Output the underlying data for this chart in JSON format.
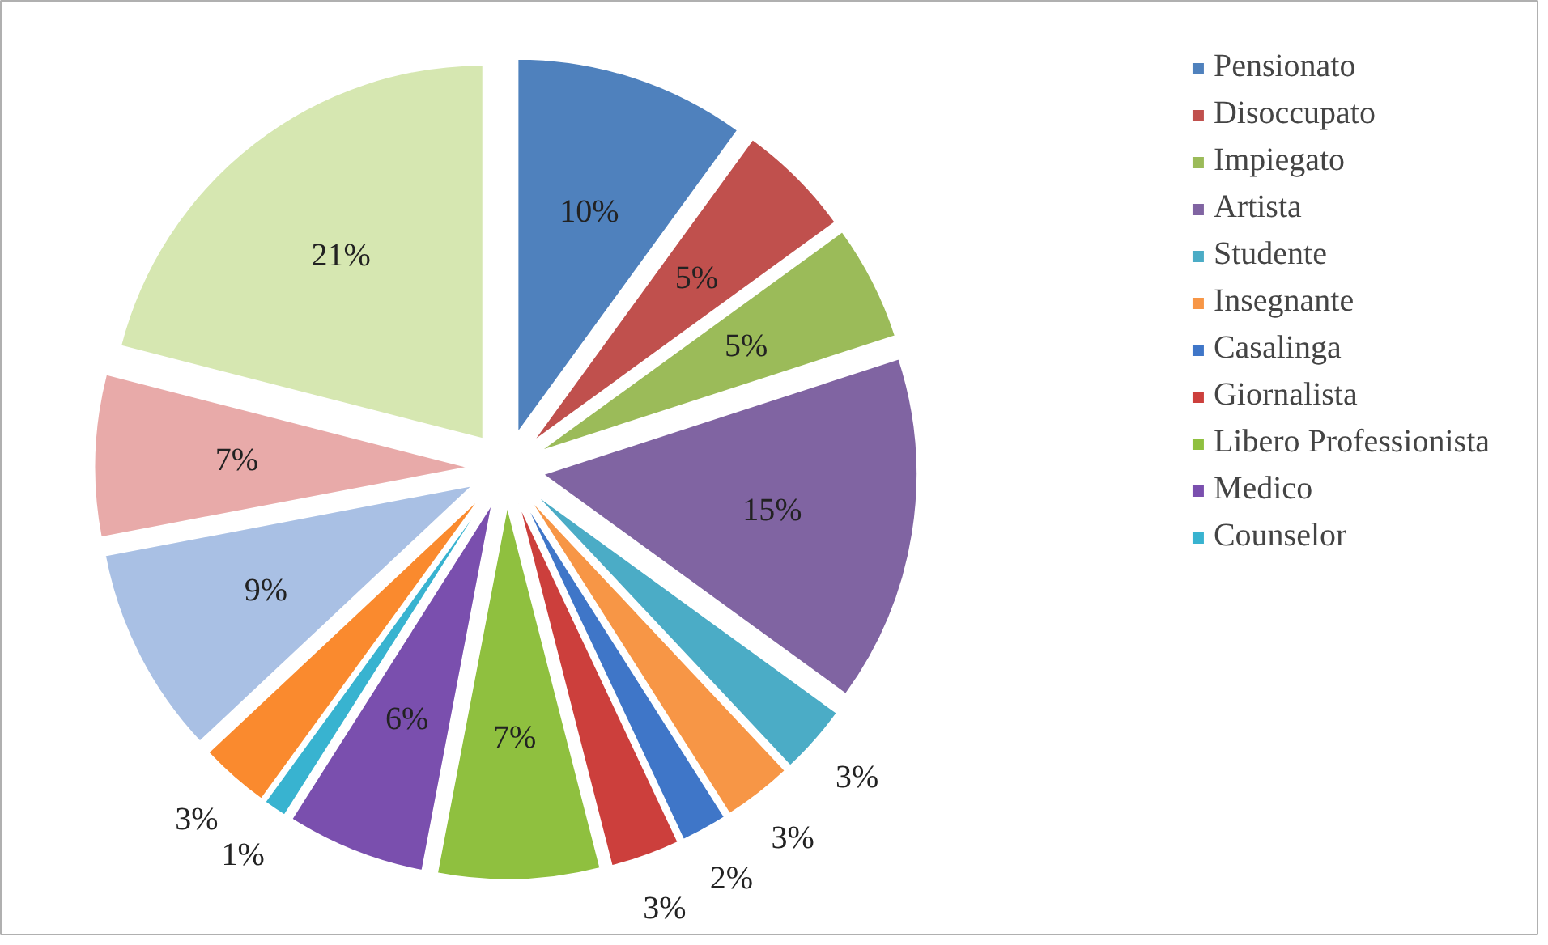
{
  "chart_data": {
    "type": "pie",
    "categories": [
      "Pensionato",
      "Disoccupato",
      "Impiegato",
      "Artista",
      "Studente",
      "Insegnante",
      "Casalinga",
      "Giornalista",
      "Libero Professionista",
      "Medico",
      "Counselor",
      null,
      null,
      null,
      null
    ],
    "values": [
      10,
      5,
      5,
      15,
      3,
      3,
      2,
      3,
      7,
      6,
      1,
      3,
      9,
      7,
      21
    ],
    "value_labels": [
      "10%",
      "5%",
      "5%",
      "15%",
      "3%",
      "3%",
      "2%",
      "3%",
      "7%",
      "6%",
      "1%",
      "3%",
      "9%",
      "7%",
      "21%"
    ],
    "colors": [
      "#4f81bd",
      "#c0504d",
      "#9bbb59",
      "#8064a2",
      "#4bacc6",
      "#f79646",
      "#3f76c8",
      "#cc3f3c",
      "#8fc03f",
      "#7a4fae",
      "#38b3d0",
      "#fa8a2e",
      "#a9c0e4",
      "#e8aaa9",
      "#d6e7b1"
    ],
    "legend": "right"
  }
}
